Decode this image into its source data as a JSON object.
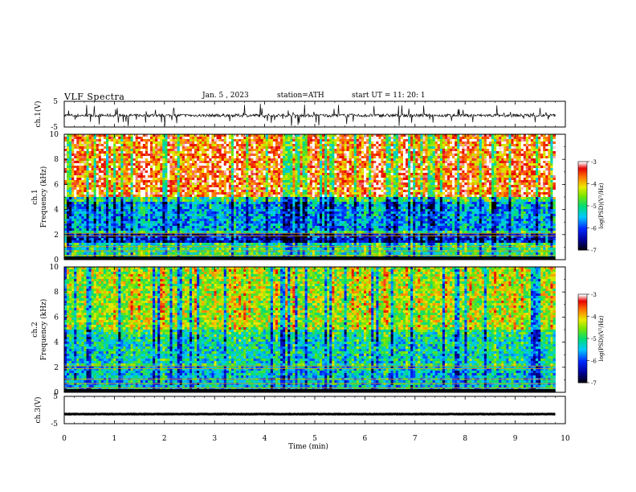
{
  "header": {
    "title": "VLF  Spectra",
    "date": "Jan. 5  , 2023",
    "station": "station=ATH",
    "start_ut": "start  UT  =    11: 20: 1"
  },
  "chart_data": [
    {
      "type": "line",
      "panel": "ch1-waveform",
      "ylabel": "ch.1(V)",
      "ylim": [
        -5,
        5
      ],
      "y_ticks": [
        "5",
        "-5"
      ],
      "xlim": [
        0,
        10
      ],
      "x_extent_min": 9.8,
      "signal": "noise with frequent spikes around -0.5 V"
    },
    {
      "type": "heatmap",
      "panel": "ch1-spectrogram",
      "ylabel_channel": "ch.1",
      "ylabel": "Frequency  (kHz)",
      "ylim": [
        0,
        10
      ],
      "y_ticks": [
        "10",
        "8",
        "6",
        "4",
        "2",
        "0"
      ],
      "xlim": [
        0,
        10
      ],
      "x_extent_min": 9.8,
      "colorbar": {
        "label": "log(PSD)(V²/Hz)",
        "range": [
          -7,
          -3
        ],
        "ticks": [
          "-3",
          "-4",
          "-5",
          "-6",
          "-7"
        ]
      },
      "bands": [
        {
          "from_khz": 5,
          "to_khz": 10,
          "level": -3.6
        },
        {
          "from_khz": 2.4,
          "to_khz": 4.6,
          "level": -5.6
        },
        {
          "from_khz": 1.3,
          "to_khz": 2.2,
          "level": -6.2
        },
        {
          "from_khz": 0,
          "to_khz": 1.2,
          "level": -5.0
        }
      ]
    },
    {
      "type": "heatmap",
      "panel": "ch2-spectrogram",
      "ylabel_channel": "ch.2",
      "ylabel": "Frequency  (kHz)",
      "ylim": [
        0,
        10
      ],
      "y_ticks": [
        "10",
        "8",
        "6",
        "4",
        "2",
        "0"
      ],
      "xlim": [
        0,
        10
      ],
      "x_extent_min": 9.8,
      "colorbar": {
        "label": "log(PSD)(V²/Hz)",
        "range": [
          -7,
          -3
        ],
        "ticks": [
          "-3",
          "-4",
          "-5",
          "-6",
          "-7"
        ]
      },
      "bands": [
        {
          "from_khz": 5,
          "to_khz": 10,
          "level": -4.4
        },
        {
          "from_khz": 2.4,
          "to_khz": 4.6,
          "level": -5.2
        },
        {
          "from_khz": 0,
          "to_khz": 2.2,
          "level": -5.4
        }
      ]
    },
    {
      "type": "line",
      "panel": "ch3-waveform",
      "ylabel": "ch.3(V)",
      "ylim": [
        -5,
        5
      ],
      "y_ticks": [
        "5",
        "-5"
      ],
      "xlim": [
        0,
        10
      ],
      "x_extent_min": 9.8,
      "signal": "nearly flat line at about -1.5 V",
      "xlabel": "Time  (min)",
      "x_ticks": [
        "0",
        "1",
        "2",
        "3",
        "4",
        "5",
        "6",
        "7",
        "8",
        "9",
        "10"
      ]
    }
  ]
}
